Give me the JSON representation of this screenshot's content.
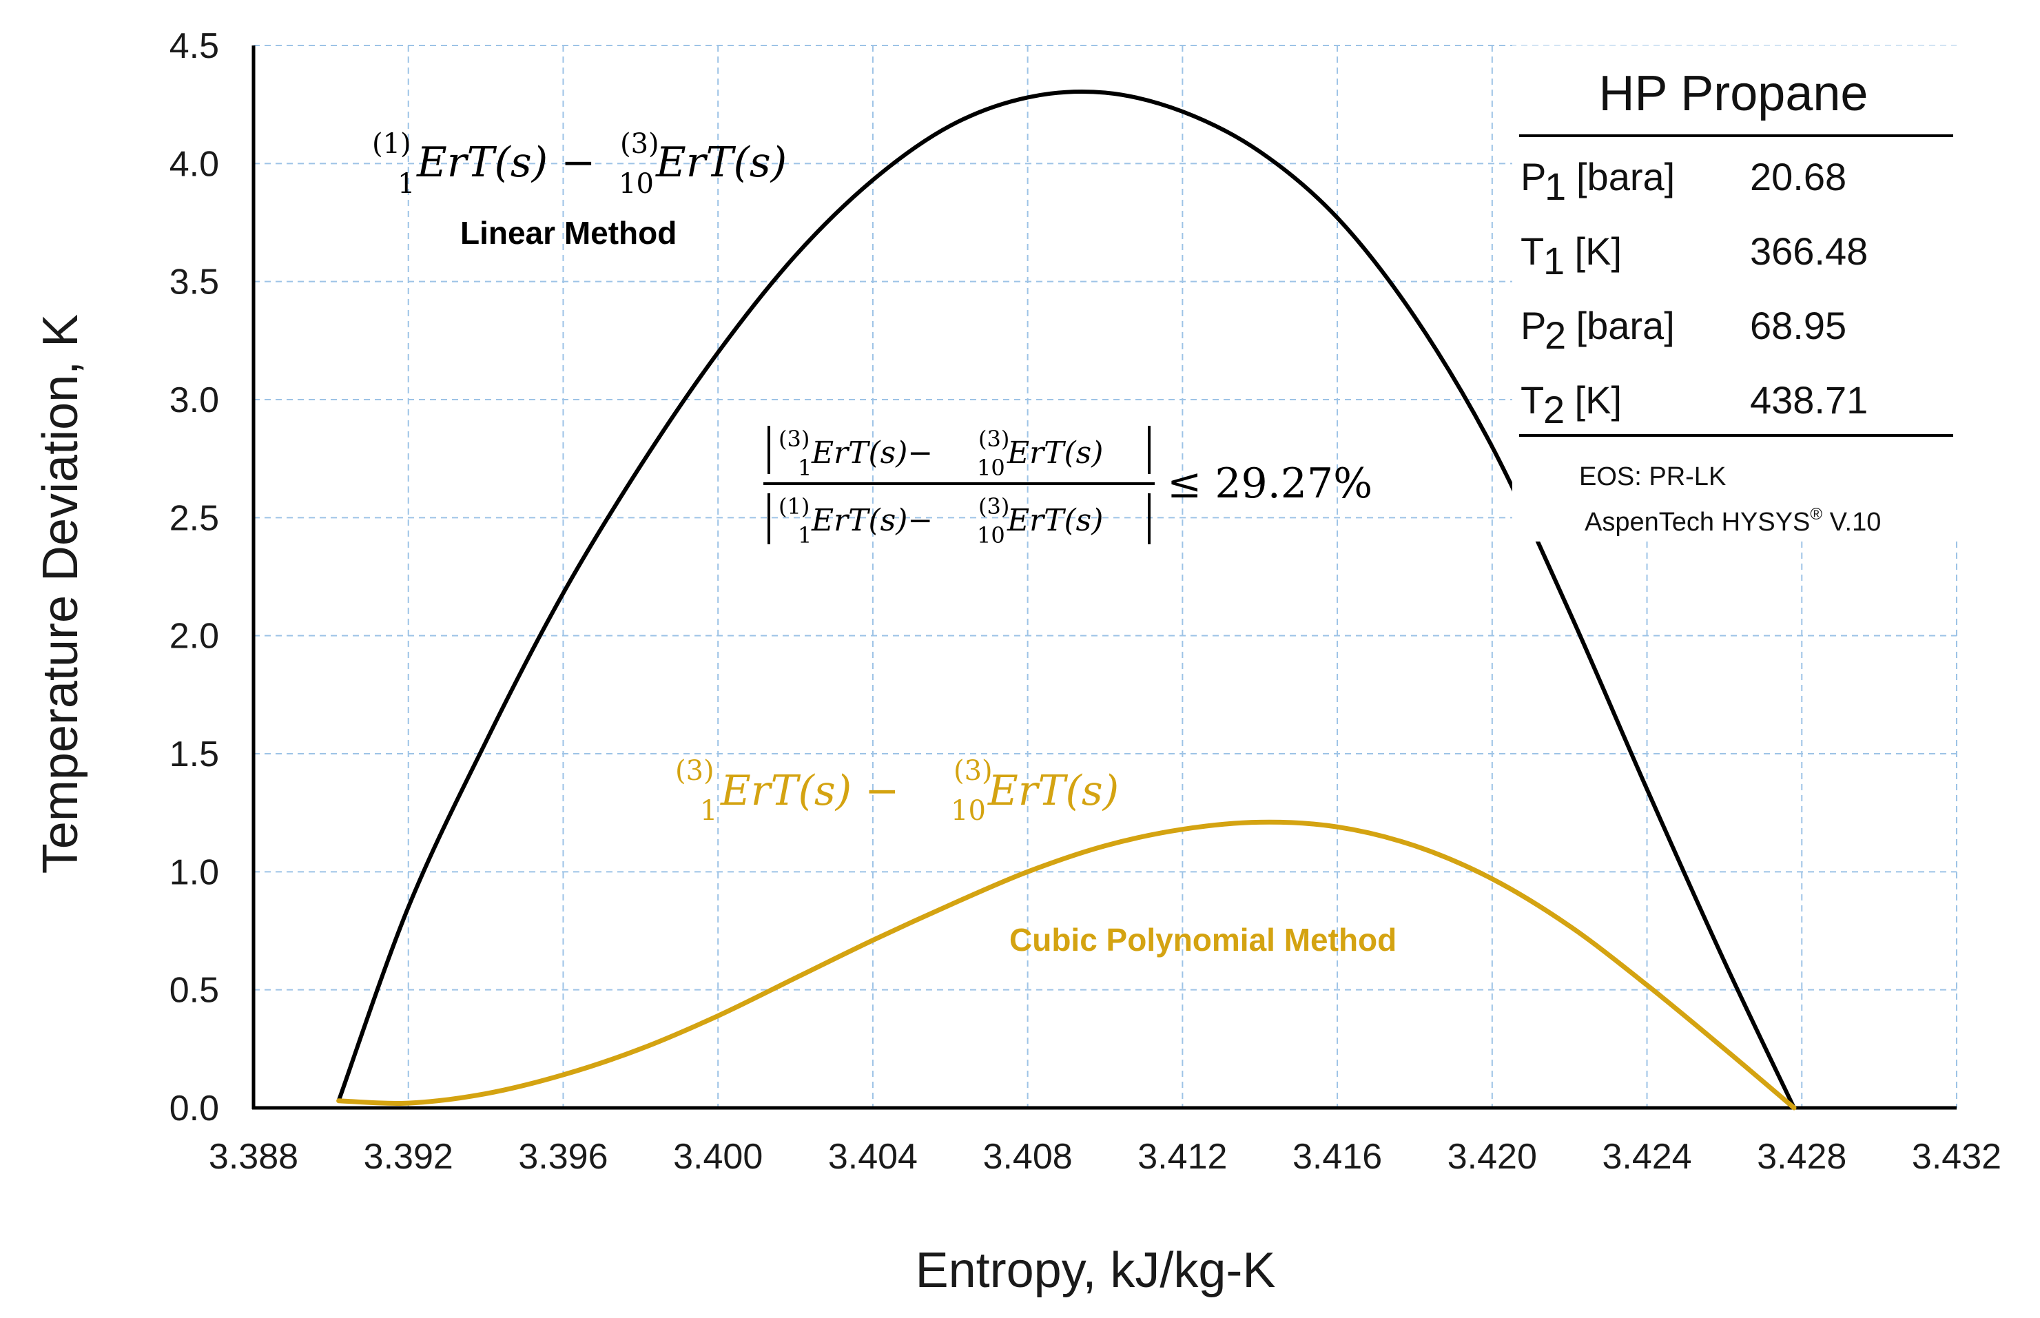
{
  "chart_data": {
    "type": "line",
    "xlabel": "Entropy, kJ/kg-K",
    "ylabel": "Temperature Deviation, K",
    "xlim": [
      3.388,
      3.432
    ],
    "ylim": [
      0.0,
      4.5
    ],
    "grid": true,
    "x_ticks": [
      "3.388",
      "3.392",
      "3.396",
      "3.400",
      "3.404",
      "3.408",
      "3.412",
      "3.416",
      "3.420",
      "3.424",
      "3.428",
      "3.432"
    ],
    "y_ticks": [
      "0.0",
      "0.5",
      "1.0",
      "1.5",
      "2.0",
      "2.5",
      "3.0",
      "3.5",
      "4.0",
      "4.5"
    ],
    "series": [
      {
        "name": "Linear Method",
        "color": "#000000",
        "x": [
          3.3902,
          3.392,
          3.394,
          3.396,
          3.398,
          3.4,
          3.402,
          3.404,
          3.406,
          3.408,
          3.41,
          3.412,
          3.414,
          3.416,
          3.418,
          3.42,
          3.422,
          3.424,
          3.426,
          3.4278
        ],
        "y": [
          0.03,
          0.85,
          1.55,
          2.18,
          2.72,
          3.2,
          3.61,
          3.93,
          4.16,
          4.28,
          4.3,
          4.22,
          4.05,
          3.77,
          3.35,
          2.8,
          2.1,
          1.35,
          0.62,
          0.0
        ]
      },
      {
        "name": "Cubic Polynomial Method",
        "color": "#D4A311",
        "x": [
          3.3902,
          3.392,
          3.394,
          3.396,
          3.398,
          3.4,
          3.402,
          3.404,
          3.406,
          3.408,
          3.41,
          3.412,
          3.414,
          3.416,
          3.418,
          3.42,
          3.422,
          3.424,
          3.426,
          3.4278
        ],
        "y": [
          0.03,
          0.02,
          0.06,
          0.14,
          0.25,
          0.39,
          0.55,
          0.71,
          0.86,
          1.0,
          1.11,
          1.18,
          1.21,
          1.19,
          1.11,
          0.97,
          0.77,
          0.52,
          0.25,
          0.0
        ]
      }
    ],
    "annotations": {
      "linear_expr_sup1": "(1)",
      "linear_expr_sub1": "1",
      "linear_expr_body1": "ErT(s) − ",
      "linear_expr_sup2": "(3)",
      "linear_expr_sub2": "10",
      "linear_expr_body2": "ErT(s)",
      "linear_label": "Linear Method",
      "cubic_expr_sup1": "(3)",
      "cubic_expr_sub1": "1",
      "cubic_expr_body1": "ErT(s) − ",
      "cubic_expr_sup2": "(3)",
      "cubic_expr_sub2": "10",
      "cubic_expr_body2": "ErT(s)",
      "cubic_label": "Cubic Polynomial Method",
      "ratio_num_sup1": "(3)",
      "ratio_num_sub1": "1",
      "ratio_num_body1": "ErT(s)−",
      "ratio_num_sup2": "(3)",
      "ratio_num_sub2": "10",
      "ratio_num_body2": "ErT(s)",
      "ratio_den_sup1": "(1)",
      "ratio_den_sub1": "1",
      "ratio_den_body1": "ErT(s)−",
      "ratio_den_sup2": "(3)",
      "ratio_den_sub2": "10",
      "ratio_den_body2": "ErT(s)",
      "ratio_value": "≤ 29.27%"
    }
  },
  "info_box": {
    "title": "HP Propane",
    "rows": [
      {
        "sym": "P",
        "sub": "1",
        "unit": "[bara]",
        "value": "20.68"
      },
      {
        "sym": "T",
        "sub": "1",
        "unit": " [K]",
        "value": "366.48"
      },
      {
        "sym": "P",
        "sub": "2",
        "unit": " [bara]",
        "value": "68.95"
      },
      {
        "sym": "T",
        "sub": "2",
        "unit": " [K]",
        "value": "438.71"
      }
    ],
    "eos": "EOS: PR-LK",
    "software_name": "AspenTech HYSYS",
    "software_mark": "®",
    "software_version": " V.10"
  },
  "colors": {
    "linear": "#000000",
    "cubic": "#D4A311",
    "grid": "#9DC3E6",
    "axis": "#000000"
  }
}
